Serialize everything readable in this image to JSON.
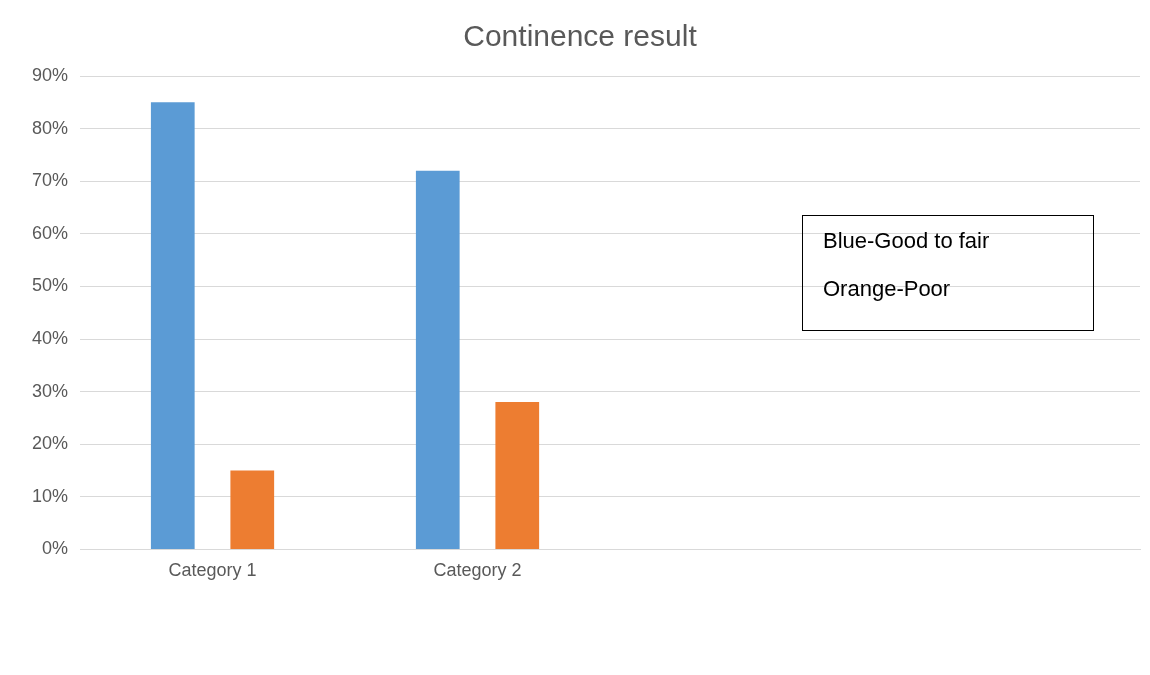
{
  "chart_data": {
    "type": "bar",
    "title": "Continence result",
    "categories": [
      "Category 1",
      "Category 2",
      null,
      null
    ],
    "series": [
      {
        "color": "#5b9bd5",
        "values": [
          85,
          72,
          null,
          null
        ]
      },
      {
        "color": "#ed7d31",
        "values": [
          15,
          28,
          null,
          null
        ]
      }
    ],
    "ylim": [
      0,
      90
    ],
    "yticks": [
      {
        "value": 0,
        "label": "0%"
      },
      {
        "value": 10,
        "label": "10%"
      },
      {
        "value": 20,
        "label": "20%"
      },
      {
        "value": 30,
        "label": "30%"
      },
      {
        "value": 40,
        "label": "40%"
      },
      {
        "value": 50,
        "label": "50%"
      },
      {
        "value": 60,
        "label": "60%"
      },
      {
        "value": 70,
        "label": "70%"
      },
      {
        "value": 80,
        "label": "80%"
      },
      {
        "value": 90,
        "label": "90%"
      }
    ],
    "grid": "y",
    "legend": false,
    "annotations": [
      "Blue-Good to fair",
      "Orange-Poor"
    ]
  }
}
